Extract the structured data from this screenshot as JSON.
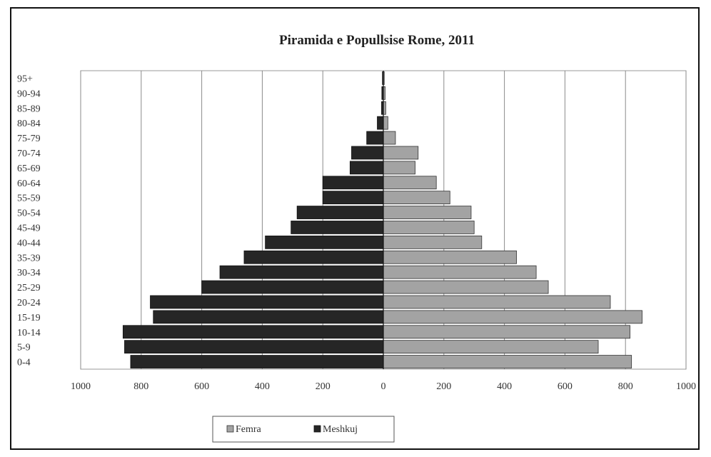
{
  "chart_data": {
    "type": "bar",
    "orientation": "horizontal",
    "title": "Piramida e Popullsise Rome, 2011",
    "categories": [
      "0-4",
      "5-9",
      "10-14",
      "15-19",
      "20-24",
      "25-29",
      "30-34",
      "35-39",
      "40-44",
      "45-49",
      "50-54",
      "55-59",
      "60-64",
      "65-69",
      "70-74",
      "75-79",
      "80-84",
      "85-89",
      "90-94",
      "95+"
    ],
    "series": [
      {
        "name": "Femra",
        "color": "#a3a3a3",
        "values": [
          820,
          710,
          815,
          855,
          750,
          545,
          505,
          440,
          325,
          300,
          290,
          220,
          175,
          105,
          115,
          40,
          15,
          8,
          6,
          3
        ]
      },
      {
        "name": "Meshkuj",
        "color": "#262626",
        "values": [
          835,
          855,
          860,
          760,
          770,
          600,
          540,
          460,
          390,
          305,
          285,
          200,
          200,
          110,
          105,
          55,
          20,
          6,
          5,
          3
        ]
      }
    ],
    "xlim": [
      -1000,
      1000
    ],
    "xticks": [
      -1000,
      -800,
      -600,
      -400,
      -200,
      0,
      200,
      400,
      600,
      800,
      1000
    ],
    "xtick_labels": [
      "1000",
      "800",
      "600",
      "400",
      "200",
      "0",
      "200",
      "400",
      "600",
      "800",
      "1000"
    ],
    "grid": true,
    "legend_position": "bottom"
  }
}
